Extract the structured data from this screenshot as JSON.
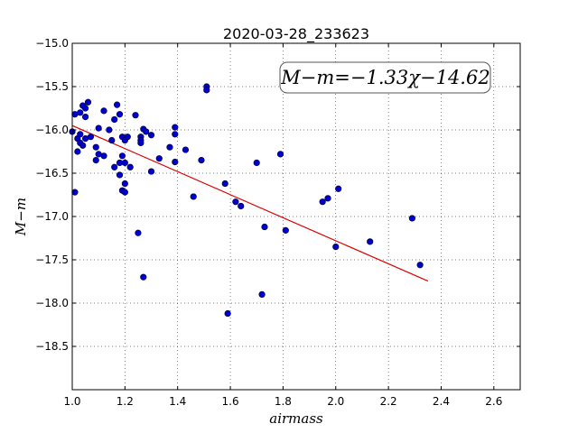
{
  "chart_data": {
    "type": "scatter",
    "title": "2020-03-28_233623",
    "xlabel": "airmass",
    "ylabel": "M−m",
    "annotation": "M−m=−1.33χ−14.62",
    "annotation_position": "top-right",
    "xlim": [
      1.0,
      2.7
    ],
    "ylim": [
      -15.0,
      -19.0
    ],
    "y_inverted": true,
    "grid": true,
    "grid_style": "dotted",
    "x_ticks": [
      "1.0",
      "1.2",
      "1.4",
      "1.6",
      "1.8",
      "2.0",
      "2.2",
      "2.4",
      "2.6"
    ],
    "y_ticks": [
      "−15.0",
      "−15.5",
      "−16.0",
      "−16.5",
      "−17.0",
      "−17.5",
      "−18.0",
      "−18.5"
    ],
    "x_tick_values": [
      1.0,
      1.2,
      1.4,
      1.6,
      1.8,
      2.0,
      2.2,
      2.4,
      2.6
    ],
    "y_tick_values": [
      -15.0,
      -15.5,
      -16.0,
      -16.5,
      -17.0,
      -17.5,
      -18.0,
      -18.5
    ],
    "points_color": "#0000cc",
    "fit_color": "#dd0000",
    "fit_line": {
      "slope": -1.33,
      "intercept": -14.62,
      "x_range": [
        1.0,
        2.35
      ]
    },
    "points": [
      [
        1.0,
        -16.02
      ],
      [
        1.01,
        -15.82
      ],
      [
        1.01,
        -16.72
      ],
      [
        1.02,
        -16.25
      ],
      [
        1.02,
        -16.1
      ],
      [
        1.03,
        -16.05
      ],
      [
        1.03,
        -15.8
      ],
      [
        1.03,
        -16.15
      ],
      [
        1.04,
        -15.72
      ],
      [
        1.04,
        -16.18
      ],
      [
        1.05,
        -16.1
      ],
      [
        1.05,
        -15.85
      ],
      [
        1.05,
        -15.75
      ],
      [
        1.06,
        -15.68
      ],
      [
        1.07,
        -16.08
      ],
      [
        1.09,
        -16.35
      ],
      [
        1.09,
        -16.2
      ],
      [
        1.1,
        -16.28
      ],
      [
        1.1,
        -15.98
      ],
      [
        1.12,
        -16.3
      ],
      [
        1.12,
        -15.78
      ],
      [
        1.14,
        -16.0
      ],
      [
        1.15,
        -16.12
      ],
      [
        1.16,
        -16.43
      ],
      [
        1.16,
        -15.88
      ],
      [
        1.17,
        -15.71
      ],
      [
        1.18,
        -15.82
      ],
      [
        1.18,
        -16.38
      ],
      [
        1.18,
        -16.52
      ],
      [
        1.19,
        -16.7
      ],
      [
        1.19,
        -16.3
      ],
      [
        1.19,
        -16.08
      ],
      [
        1.2,
        -16.72
      ],
      [
        1.2,
        -16.62
      ],
      [
        1.2,
        -16.12
      ],
      [
        1.2,
        -16.38
      ],
      [
        1.21,
        -16.08
      ],
      [
        1.22,
        -16.43
      ],
      [
        1.24,
        -15.83
      ],
      [
        1.25,
        -17.19
      ],
      [
        1.26,
        -16.08
      ],
      [
        1.26,
        -16.12
      ],
      [
        1.26,
        -16.15
      ],
      [
        1.27,
        -17.7
      ],
      [
        1.27,
        -15.99
      ],
      [
        1.28,
        -16.02
      ],
      [
        1.3,
        -16.06
      ],
      [
        1.3,
        -16.48
      ],
      [
        1.33,
        -16.33
      ],
      [
        1.37,
        -16.2
      ],
      [
        1.39,
        -15.97
      ],
      [
        1.39,
        -16.05
      ],
      [
        1.39,
        -16.37
      ],
      [
        1.43,
        -16.23
      ],
      [
        1.46,
        -16.77
      ],
      [
        1.49,
        -16.35
      ],
      [
        1.51,
        -15.5
      ],
      [
        1.51,
        -15.54
      ],
      [
        1.58,
        -16.62
      ],
      [
        1.59,
        -18.12
      ],
      [
        1.62,
        -16.83
      ],
      [
        1.64,
        -16.88
      ],
      [
        1.7,
        -16.38
      ],
      [
        1.72,
        -17.9
      ],
      [
        1.73,
        -17.12
      ],
      [
        1.79,
        -16.28
      ],
      [
        1.81,
        -17.16
      ],
      [
        1.95,
        -16.83
      ],
      [
        1.97,
        -16.79
      ],
      [
        2.0,
        -17.35
      ],
      [
        2.01,
        -16.68
      ],
      [
        2.13,
        -17.29
      ],
      [
        2.29,
        -17.02
      ],
      [
        2.32,
        -17.56
      ]
    ]
  }
}
